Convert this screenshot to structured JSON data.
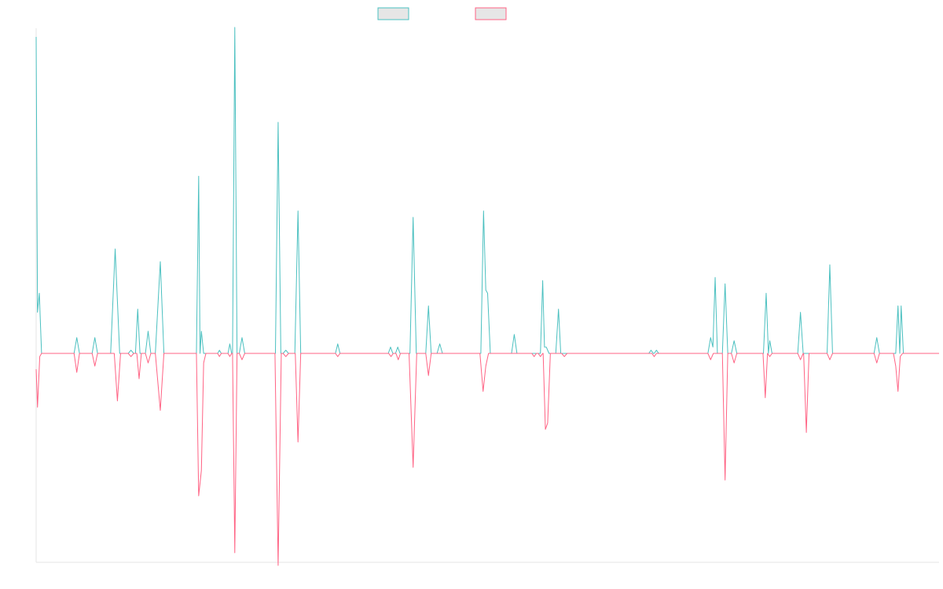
{
  "chart_data": {
    "type": "line",
    "title": "",
    "xlabel": "",
    "ylabel": "",
    "grid": false,
    "legend_position": "top-center",
    "ylim": [
      -100,
      100
    ],
    "colors": {
      "series_a": "#4bc0c0",
      "series_b": "#ff6384",
      "legend_fill": "#e6e6e6",
      "axis": "#e6e6e6"
    },
    "series": [
      {
        "key": "teal",
        "color": "#4bc0c0",
        "points": [
          [
            0,
            100
          ],
          [
            0.3,
            13
          ],
          [
            0.7,
            19
          ],
          [
            1.2,
            0
          ],
          [
            8.4,
            0
          ],
          [
            9,
            5
          ],
          [
            9.6,
            0
          ],
          [
            12.4,
            0
          ],
          [
            13,
            5
          ],
          [
            13.6,
            0
          ],
          [
            16.5,
            0
          ],
          [
            17.5,
            33
          ],
          [
            18.5,
            0
          ],
          [
            20.4,
            0
          ],
          [
            21,
            1
          ],
          [
            21.6,
            0
          ],
          [
            22,
            0
          ],
          [
            22.5,
            14
          ],
          [
            23,
            0
          ],
          [
            24.2,
            0
          ],
          [
            24.8,
            7
          ],
          [
            25.4,
            0
          ],
          [
            26.4,
            0
          ],
          [
            27.5,
            29
          ],
          [
            28.3,
            0
          ],
          [
            35.5,
            0
          ],
          [
            36,
            56
          ],
          [
            36.3,
            0
          ],
          [
            36.6,
            7
          ],
          [
            37.1,
            0
          ],
          [
            40.2,
            0
          ],
          [
            40.6,
            1
          ],
          [
            41,
            0
          ],
          [
            42.5,
            0
          ],
          [
            42.9,
            3
          ],
          [
            43.3,
            0
          ],
          [
            43.5,
            0
          ],
          [
            44,
            103
          ],
          [
            44.5,
            0
          ],
          [
            45,
            0
          ],
          [
            45.6,
            5
          ],
          [
            46.2,
            0
          ],
          [
            53,
            0
          ],
          [
            53.6,
            73
          ],
          [
            54.2,
            0
          ],
          [
            54.7,
            0
          ],
          [
            55.3,
            1
          ],
          [
            55.9,
            0
          ],
          [
            57.3,
            0
          ],
          [
            58,
            45
          ],
          [
            58.6,
            0
          ],
          [
            66.3,
            0
          ],
          [
            66.8,
            3
          ],
          [
            67.3,
            0
          ],
          [
            78,
            0
          ],
          [
            78.5,
            2
          ],
          [
            79,
            0
          ],
          [
            79.6,
            0
          ],
          [
            80.1,
            2
          ],
          [
            80.6,
            0
          ],
          [
            82.8,
            0
          ],
          [
            83.5,
            43
          ],
          [
            84.2,
            0
          ],
          [
            86.3,
            0
          ],
          [
            86.9,
            15
          ],
          [
            87.5,
            0
          ],
          [
            88.8,
            0
          ],
          [
            89.4,
            3
          ],
          [
            90,
            0
          ],
          [
            98.5,
            0
          ],
          [
            99.1,
            45
          ],
          [
            99.6,
            20
          ],
          [
            100,
            19
          ],
          [
            100.6,
            0
          ],
          [
            105.3,
            0
          ],
          [
            105.9,
            6
          ],
          [
            106.5,
            0
          ],
          [
            111.7,
            0
          ],
          [
            112.2,
            23
          ],
          [
            112.6,
            2
          ],
          [
            113,
            2
          ],
          [
            113.6,
            0
          ],
          [
            115.1,
            0
          ],
          [
            115.7,
            14
          ],
          [
            116.2,
            0
          ],
          [
            135.7,
            0
          ],
          [
            136.2,
            1
          ],
          [
            136.7,
            0
          ],
          [
            136.9,
            0
          ],
          [
            137.4,
            1
          ],
          [
            137.9,
            0
          ],
          [
            148.8,
            0
          ],
          [
            149.4,
            5
          ],
          [
            149.9,
            2
          ],
          [
            150.4,
            24
          ],
          [
            150.9,
            0
          ],
          [
            152,
            0
          ],
          [
            152.6,
            22
          ],
          [
            153.2,
            0
          ],
          [
            154,
            0
          ],
          [
            154.6,
            4
          ],
          [
            155.2,
            0
          ],
          [
            161.1,
            0
          ],
          [
            161.7,
            19
          ],
          [
            162.2,
            0
          ],
          [
            162.5,
            4
          ],
          [
            163,
            0
          ],
          [
            168.7,
            0
          ],
          [
            169.3,
            13
          ],
          [
            169.9,
            0
          ],
          [
            175.2,
            0
          ],
          [
            175.8,
            28
          ],
          [
            176.4,
            0
          ],
          [
            185.6,
            0
          ],
          [
            186.2,
            5
          ],
          [
            186.8,
            0
          ],
          [
            190.4,
            0
          ],
          [
            190.9,
            15
          ],
          [
            191.3,
            0
          ],
          [
            191.6,
            15
          ],
          [
            192.1,
            0
          ],
          [
            200,
            0
          ]
        ]
      },
      {
        "key": "pink",
        "color": "#ff6384",
        "points": [
          [
            0,
            -5
          ],
          [
            0.3,
            -17
          ],
          [
            0.8,
            -1
          ],
          [
            1.2,
            0
          ],
          [
            8.4,
            0
          ],
          [
            9,
            -6
          ],
          [
            9.6,
            0
          ],
          [
            12.4,
            0
          ],
          [
            13,
            -4
          ],
          [
            13.6,
            0
          ],
          [
            17.3,
            0
          ],
          [
            18,
            -15
          ],
          [
            18.7,
            0
          ],
          [
            20.4,
            0
          ],
          [
            21,
            -1
          ],
          [
            21.6,
            0
          ],
          [
            22.3,
            0
          ],
          [
            22.8,
            -8
          ],
          [
            23.3,
            0
          ],
          [
            24.2,
            0
          ],
          [
            24.8,
            -3
          ],
          [
            25.4,
            0
          ],
          [
            26.4,
            0
          ],
          [
            27.5,
            -18
          ],
          [
            28.3,
            0
          ],
          [
            35.5,
            0
          ],
          [
            36,
            -45
          ],
          [
            36.6,
            -37
          ],
          [
            37.1,
            -3
          ],
          [
            37.6,
            0
          ],
          [
            40.2,
            0
          ],
          [
            40.6,
            -1
          ],
          [
            41,
            0
          ],
          [
            42.5,
            0
          ],
          [
            42.9,
            -1
          ],
          [
            43.3,
            0
          ],
          [
            43.5,
            0
          ],
          [
            44,
            -63
          ],
          [
            44.5,
            0
          ],
          [
            45,
            0
          ],
          [
            45.6,
            -2
          ],
          [
            46.2,
            0
          ],
          [
            52.9,
            0
          ],
          [
            53.6,
            -67
          ],
          [
            54.3,
            0
          ],
          [
            54.7,
            0
          ],
          [
            55.3,
            -1
          ],
          [
            55.9,
            0
          ],
          [
            57.4,
            0
          ],
          [
            58,
            -28
          ],
          [
            58.6,
            0
          ],
          [
            66.3,
            0
          ],
          [
            66.8,
            -1
          ],
          [
            67.3,
            0
          ],
          [
            78.1,
            0
          ],
          [
            78.6,
            -1
          ],
          [
            79.1,
            0
          ],
          [
            79.7,
            0
          ],
          [
            80.2,
            -2
          ],
          [
            80.7,
            0
          ],
          [
            82.6,
            0
          ],
          [
            83.5,
            -36
          ],
          [
            84.3,
            0
          ],
          [
            86.3,
            0
          ],
          [
            86.9,
            -7
          ],
          [
            87.5,
            0
          ],
          [
            98.3,
            0
          ],
          [
            99,
            -12
          ],
          [
            99.6,
            -4
          ],
          [
            100.2,
            0
          ],
          [
            109.8,
            0
          ],
          [
            110.3,
            -1
          ],
          [
            110.8,
            0
          ],
          [
            111.2,
            0
          ],
          [
            111.7,
            -1
          ],
          [
            112.2,
            0
          ],
          [
            112.3,
            0
          ],
          [
            112.8,
            -24
          ],
          [
            113.3,
            -22
          ],
          [
            113.9,
            0
          ],
          [
            116.4,
            0
          ],
          [
            117,
            -1
          ],
          [
            117.6,
            0
          ],
          [
            136.4,
            0
          ],
          [
            136.9,
            -1
          ],
          [
            137.4,
            0
          ],
          [
            148.8,
            0
          ],
          [
            149.4,
            -2
          ],
          [
            150,
            0
          ],
          [
            152,
            0
          ],
          [
            152.6,
            -40
          ],
          [
            153.2,
            0
          ],
          [
            154,
            0
          ],
          [
            154.6,
            -3
          ],
          [
            155.2,
            0
          ],
          [
            161,
            0
          ],
          [
            161.5,
            -14
          ],
          [
            162,
            0
          ],
          [
            162.5,
            -1
          ],
          [
            163,
            0
          ],
          [
            168.7,
            0
          ],
          [
            169.3,
            -2
          ],
          [
            169.9,
            0
          ],
          [
            170,
            0
          ],
          [
            170.6,
            -25
          ],
          [
            171.2,
            0
          ],
          [
            175.2,
            0
          ],
          [
            175.8,
            -2
          ],
          [
            176.4,
            0
          ],
          [
            185.6,
            0
          ],
          [
            186.2,
            -3
          ],
          [
            186.8,
            0
          ],
          [
            189.9,
            0
          ],
          [
            190.4,
            -4
          ],
          [
            190.9,
            -12
          ],
          [
            191.4,
            -1
          ],
          [
            191.9,
            0
          ],
          [
            200,
            0
          ]
        ]
      }
    ]
  }
}
